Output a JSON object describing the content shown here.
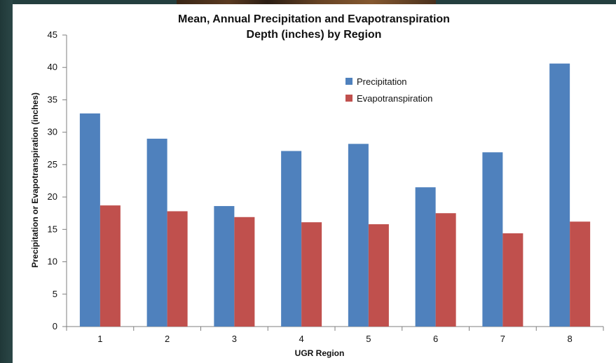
{
  "chart_data": {
    "type": "bar",
    "title": [
      "Mean, Annual Precipitation and Evapotranspiration",
      "Depth (inches) by Region"
    ],
    "xlabel": "UGR Region",
    "ylabel": "Precipitation or Evapotranspiration (inches)",
    "categories": [
      "1",
      "2",
      "3",
      "4",
      "5",
      "6",
      "7",
      "8"
    ],
    "ylim": [
      0,
      45
    ],
    "yticks": [
      0,
      5,
      10,
      15,
      20,
      25,
      30,
      35,
      40,
      45
    ],
    "grid": false,
    "legend_position": "top-right",
    "series": [
      {
        "name": "Precipitation",
        "color": "#4F81BD",
        "values": [
          32.9,
          29.0,
          18.6,
          27.1,
          28.2,
          21.5,
          26.9,
          40.6
        ]
      },
      {
        "name": "Evapotranspiration",
        "color": "#C0504D",
        "values": [
          18.7,
          17.8,
          16.9,
          16.1,
          15.8,
          17.5,
          14.4,
          16.2
        ]
      }
    ]
  }
}
